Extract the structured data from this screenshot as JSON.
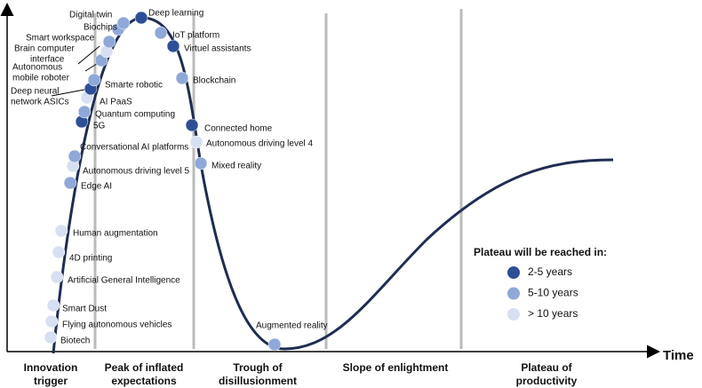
{
  "axis_label": "Time",
  "legend": {
    "title": "Plateau will be reached in:",
    "items": [
      {
        "label": "2-5 years",
        "color": "#2e4f96"
      },
      {
        "label": "5-10 years",
        "color": "#8fa8d8"
      },
      {
        "label": "> 10 years",
        "color": "#d6e0f2"
      }
    ]
  },
  "phases": [
    {
      "lines": [
        "Innovation",
        "trigger"
      ]
    },
    {
      "lines": [
        "Peak of inflated",
        "expectations"
      ]
    },
    {
      "lines": [
        "Trough of",
        "disillusionment"
      ]
    },
    {
      "lines": [
        "Slope of enlightment"
      ]
    },
    {
      "lines": [
        "Plateau of",
        "productivity"
      ]
    }
  ],
  "nodes": [
    {
      "lines": [
        "Biotech"
      ],
      "color": "#d6e0f2"
    },
    {
      "lines": [
        "Flying autonomous vehicles"
      ],
      "color": "#d6e0f2"
    },
    {
      "lines": [
        "Smart Dust"
      ],
      "color": "#d6e0f2"
    },
    {
      "lines": [
        "Artificial General Intelligence"
      ],
      "color": "#d6e0f2"
    },
    {
      "lines": [
        "4D printing"
      ],
      "color": "#d6e0f2"
    },
    {
      "lines": [
        "Human augmentation"
      ],
      "color": "#d6e0f2"
    },
    {
      "lines": [
        "Edge AI"
      ],
      "color": "#8fa8d8"
    },
    {
      "lines": [
        "Autonomous driving level 5"
      ],
      "color": "#d6e0f2"
    },
    {
      "lines": [
        "Conversational AI platforms"
      ],
      "color": "#8fa8d8"
    },
    {
      "lines": [
        "5G"
      ],
      "color": "#2e4f96"
    },
    {
      "lines": [
        "Quantum computing"
      ],
      "color": "#8fa8d8"
    },
    {
      "lines": [
        "AI PaaS"
      ],
      "color": "#d6e0f2"
    },
    {
      "lines": [
        "Deep neural",
        "network ASICs"
      ],
      "color": "#2e4f96"
    },
    {
      "lines": [
        "Smarte robotic"
      ],
      "color": "#8fa8d8"
    },
    {
      "lines": [
        "Autonomous",
        "mobile roboter"
      ],
      "color": "#8fa8d8"
    },
    {
      "lines": [
        "Brain computer",
        "interface"
      ],
      "color": "#d6e0f2"
    },
    {
      "lines": [
        "Smart workspace"
      ],
      "color": "#8fa8d8"
    },
    {
      "lines": [
        "Biochips"
      ],
      "color": "#8fa8d8"
    },
    {
      "lines": [
        "Digital twin"
      ],
      "color": "#8fa8d8"
    },
    {
      "lines": [
        "Deep learning"
      ],
      "color": "#2e4f96"
    },
    {
      "lines": [
        "IoT platform"
      ],
      "color": "#8fa8d8"
    },
    {
      "lines": [
        "Virtuel assistants"
      ],
      "color": "#2e4f96"
    },
    {
      "lines": [
        "Blockchain"
      ],
      "color": "#8fa8d8"
    },
    {
      "lines": [
        "Connected home"
      ],
      "color": "#2e4f96"
    },
    {
      "lines": [
        "Autonomous driving level 4"
      ],
      "color": "#d6e0f2"
    },
    {
      "lines": [
        "Mixed reality"
      ],
      "color": "#8fa8d8"
    },
    {
      "lines": [
        "Augmented reality"
      ],
      "color": "#8fa8d8"
    }
  ]
}
